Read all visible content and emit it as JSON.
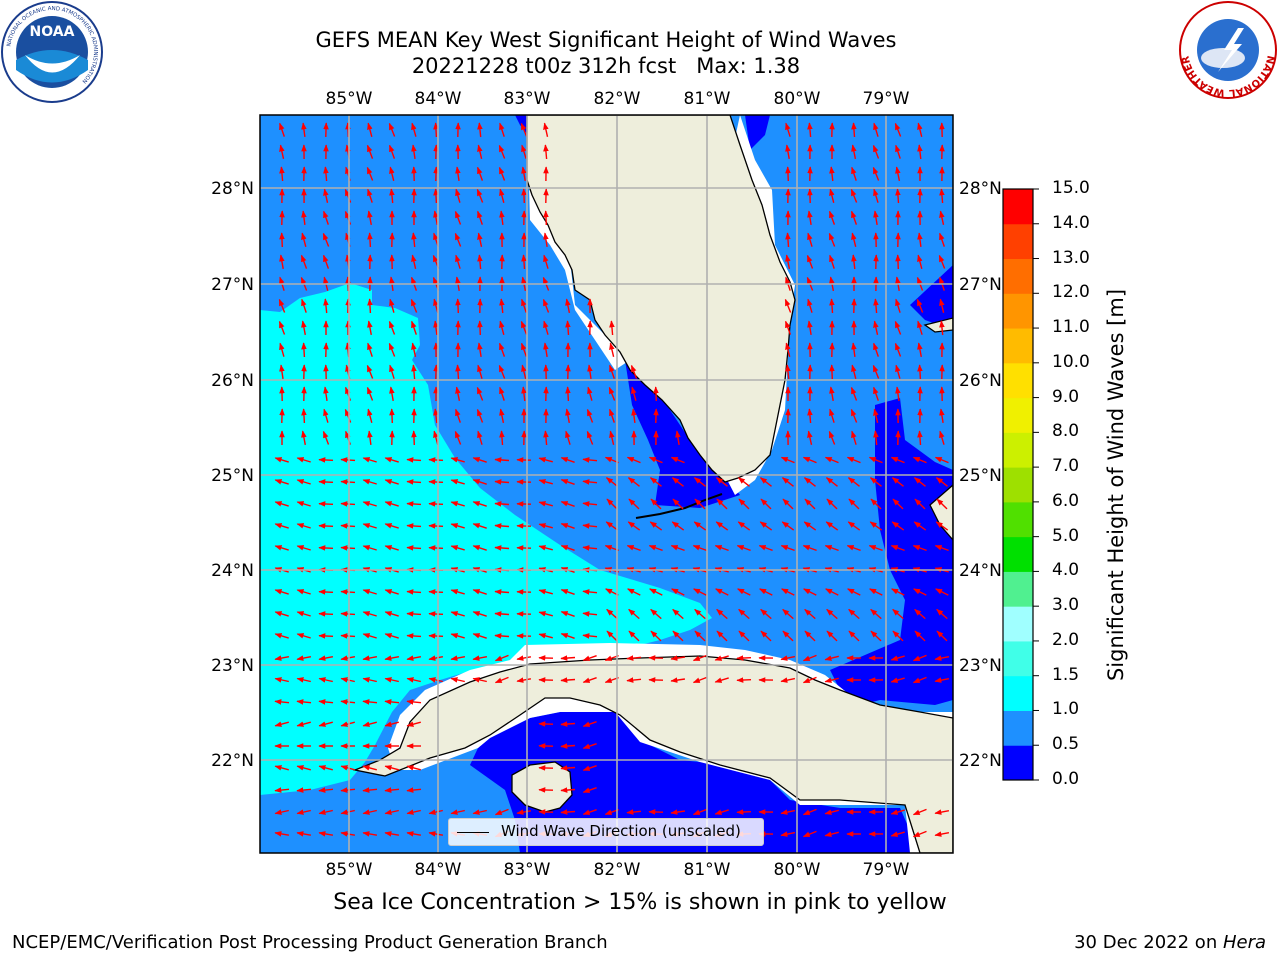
{
  "title_line1": "GEFS MEAN Key West Significant Height of Wind Waves",
  "title_line2": "20221228 t00z 312h fcst   Max: 1.38",
  "lon_labels": [
    "85°W",
    "84°W",
    "83°W",
    "82°W",
    "81°W",
    "80°W",
    "79°W"
  ],
  "lat_labels": [
    "28°N",
    "27°N",
    "26°N",
    "25°N",
    "24°N",
    "23°N",
    "22°N"
  ],
  "legend_label": "Wind Wave Direction (unscaled)",
  "colorbar": {
    "title": "Significant Height of Wind Waves [m]",
    "tick_labels": [
      "0.0",
      "0.5",
      "1.0",
      "1.5",
      "2.0",
      "3.0",
      "4.0",
      "5.0",
      "6.0",
      "7.0",
      "8.0",
      "9.0",
      "10.0",
      "11.0",
      "12.0",
      "13.0",
      "14.0",
      "15.0"
    ],
    "colors": [
      "#0000ff",
      "#1e90ff",
      "#00ffff",
      "#40ffe8",
      "#a0ffff",
      "#50f090",
      "#00e000",
      "#50e000",
      "#9ee000",
      "#ccf000",
      "#f0f000",
      "#ffe000",
      "#ffbb00",
      "#ff9500",
      "#ff6e00",
      "#ff4000",
      "#ff0000"
    ]
  },
  "caption": "Sea Ice Concentration > 15% is shown in pink to yellow",
  "footer_left": "NCEP/EMC/Verification Post Processing Product Generation Branch",
  "footer_right_date": "30 Dec 2022 on ",
  "footer_right_host": "Hera",
  "logos": {
    "left": {
      "name": "noaa-logo",
      "text": "NOAA",
      "ring_text": "NATIONAL OCEANIC AND ATMOSPHERIC ADMINISTRATION"
    },
    "right": {
      "name": "nws-logo",
      "ring_text": "NATIONAL WEATHER SERVICE"
    }
  },
  "colors": {
    "land": "#eeeedc",
    "coast": "#000000",
    "grid": "#b0b0b0",
    "arrow": "#ff0000",
    "sea_low": "#0000ff",
    "sea_mid": "#1e90ff",
    "sea_high": "#00ffff"
  }
}
